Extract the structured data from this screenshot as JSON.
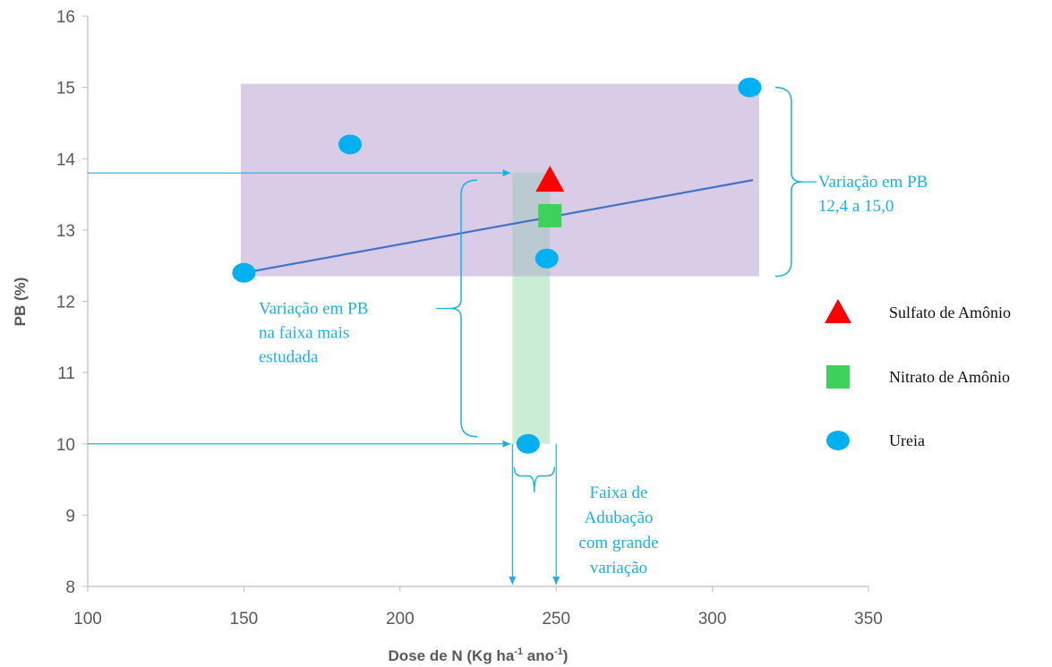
{
  "chart_data": {
    "type": "scatter",
    "xlabel": {
      "main": "Dose de N (Kg ha",
      "sup1": "-1",
      "mid": " ano",
      "sup2": "-1",
      "end": ")"
    },
    "ylabel": "PB (%)",
    "xlim": [
      100,
      350
    ],
    "ylim": [
      8,
      16
    ],
    "x_ticks": [
      100,
      150,
      200,
      250,
      300,
      350
    ],
    "y_ticks": [
      8,
      9,
      10,
      11,
      12,
      13,
      14,
      15,
      16
    ],
    "grid": false,
    "legend_position": "right",
    "series": [
      {
        "name": "Sulfato de Amônio",
        "marker": "triangle",
        "color": "#ff0000",
        "points": [
          {
            "x": 248,
            "y": 13.7
          }
        ]
      },
      {
        "name": "Nitrato de Amônio",
        "marker": "square",
        "color": "#3dd25a",
        "points": [
          {
            "x": 248,
            "y": 13.2
          }
        ]
      },
      {
        "name": "Ureia",
        "marker": "circle",
        "color": "#00b0f0",
        "points": [
          {
            "x": 150,
            "y": 12.4
          },
          {
            "x": 184,
            "y": 14.2
          },
          {
            "x": 241,
            "y": 10.0
          },
          {
            "x": 247,
            "y": 12.6
          },
          {
            "x": 312,
            "y": 15.0
          }
        ]
      }
    ],
    "trendline": {
      "x": [
        150,
        313
      ],
      "y": [
        12.4,
        13.7
      ],
      "color": "#4472c4"
    },
    "regions": [
      {
        "x": [
          149,
          315
        ],
        "y": [
          12.35,
          15.05
        ],
        "color": "#d9cce6",
        "label": "purple-band"
      },
      {
        "x": [
          236,
          248
        ],
        "y": [
          10.0,
          13.8
        ],
        "color": "#c4ebd0",
        "label": "green-band"
      }
    ],
    "annotations": {
      "right_range": [
        "Variação em PB",
        "12,4 a 15,0"
      ],
      "left_range": [
        "Variação em PB",
        "na faixa mais",
        "estudada"
      ],
      "bottom_range": [
        "Faixa de",
        "Adubação",
        "com grande",
        "variação"
      ]
    },
    "guides": {
      "h_arrow_top_y": 13.8,
      "h_arrow_bottom_y": 10.0,
      "v_arrow_left_x": 236,
      "v_arrow_right_x": 250
    }
  }
}
